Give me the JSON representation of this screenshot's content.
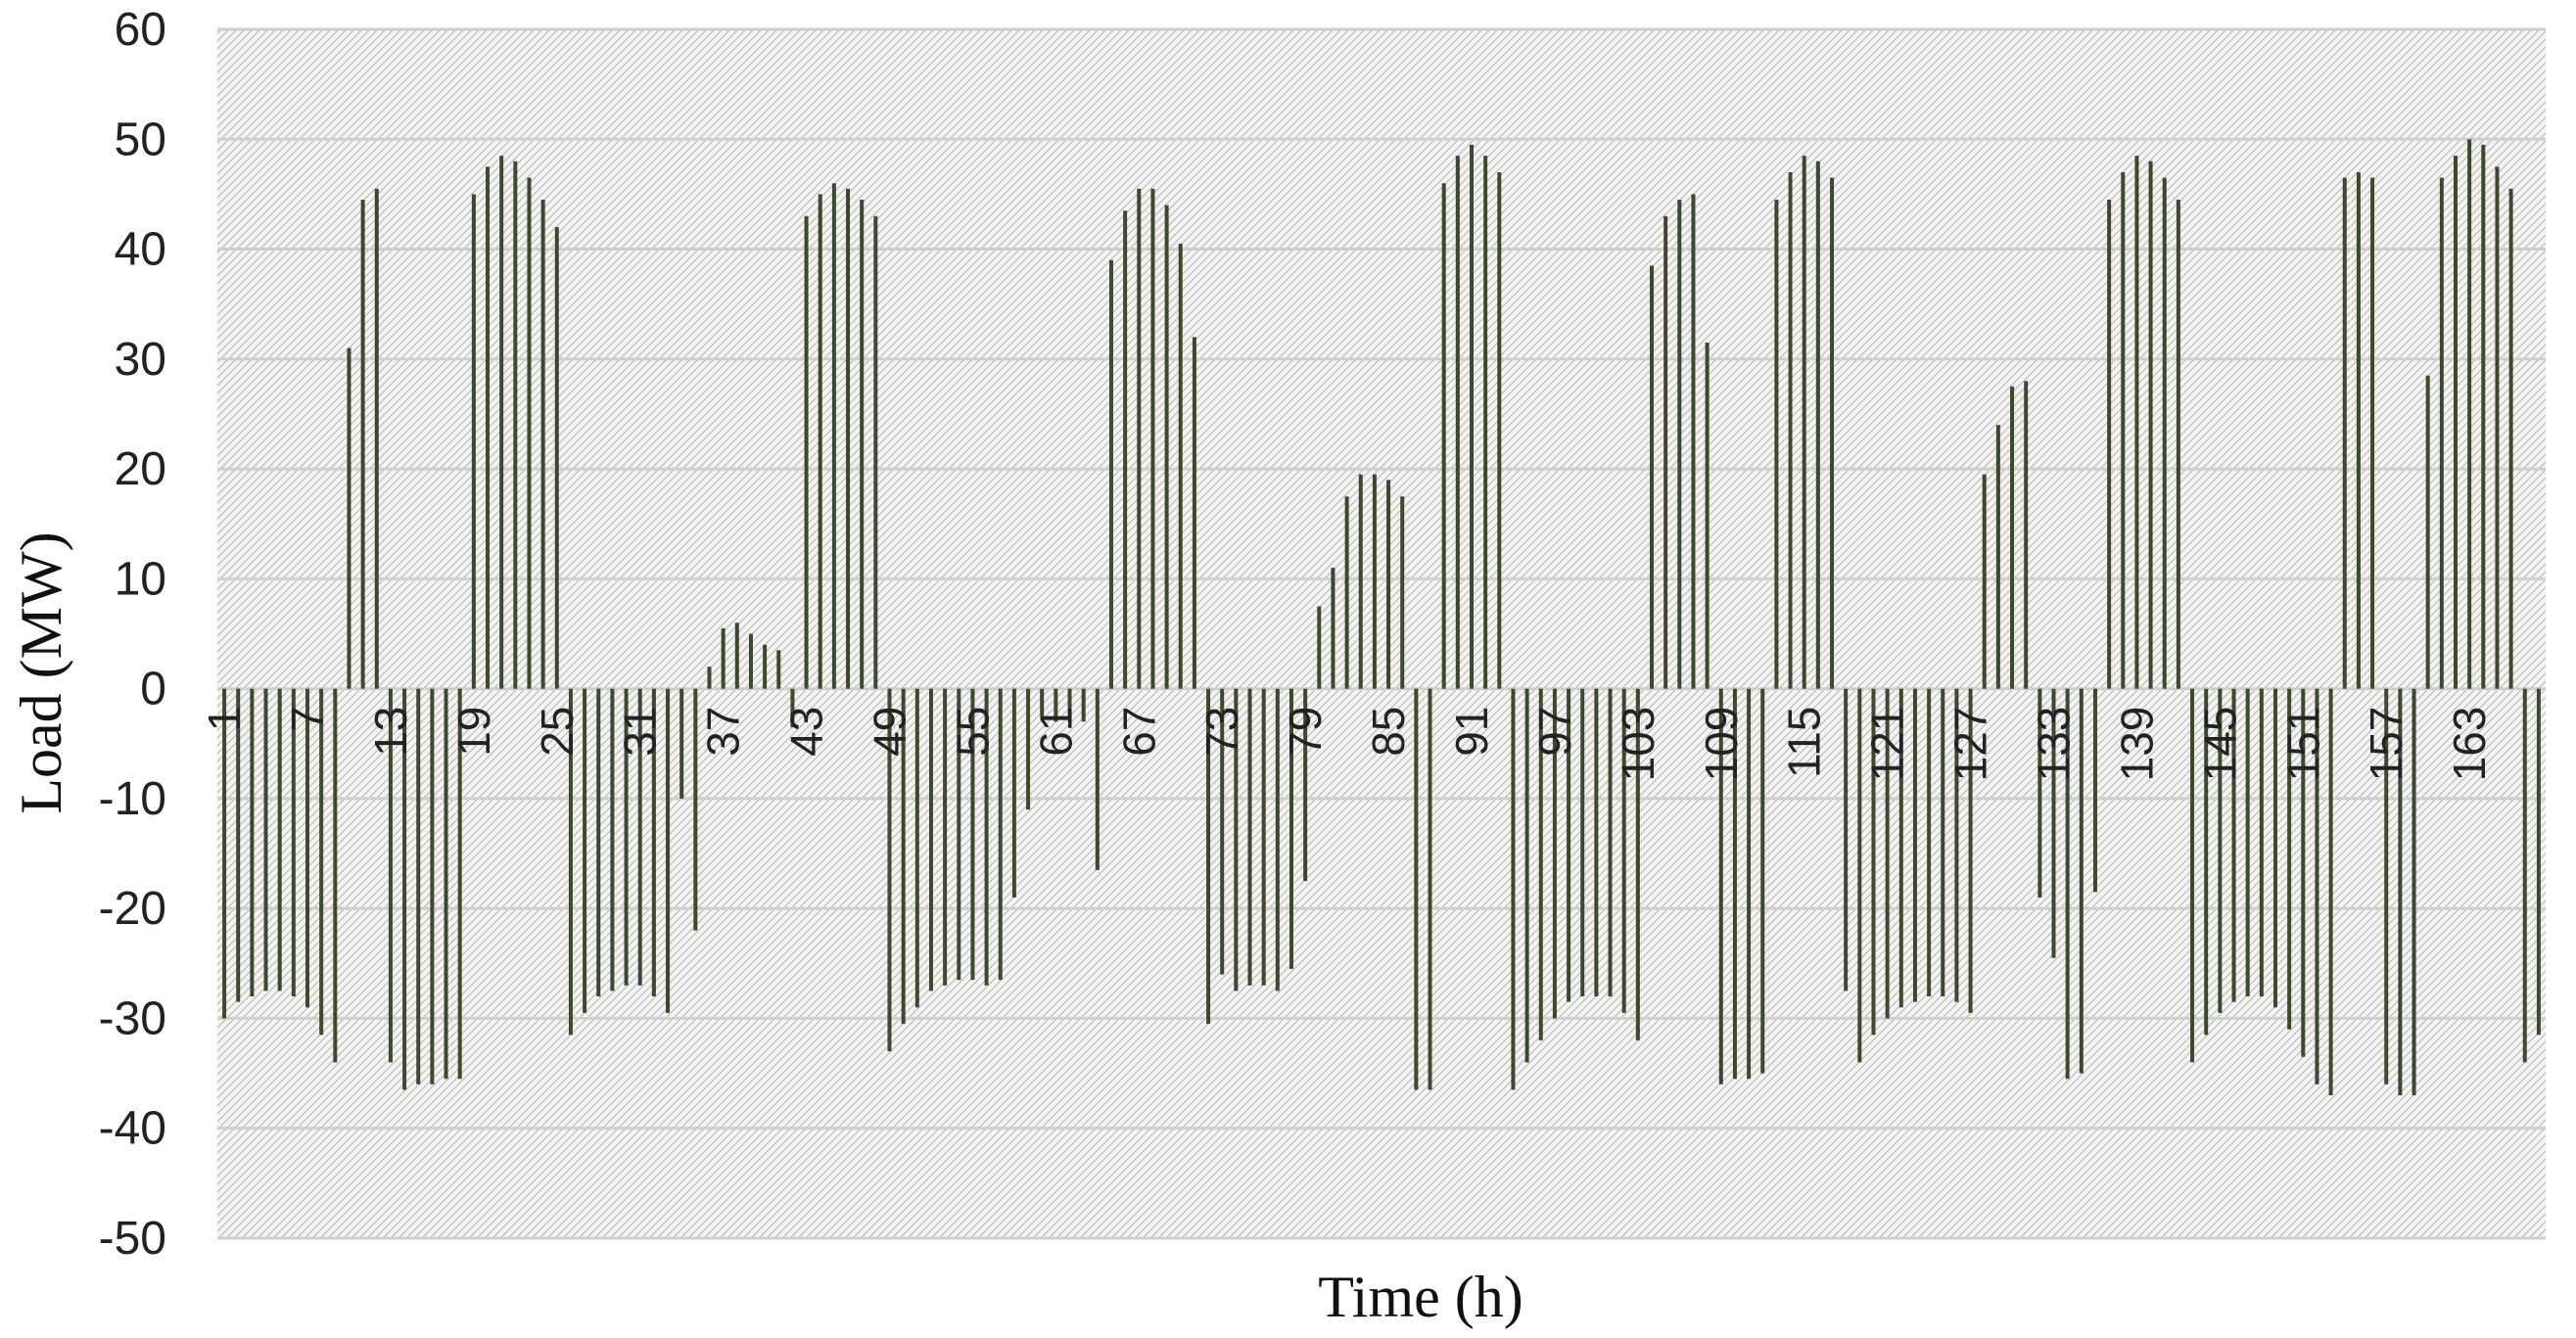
{
  "chart_data": {
    "type": "bar",
    "xlabel": "Time (h)",
    "ylabel": "Load (MW)",
    "ylim": [
      -50,
      60
    ],
    "yticks": [
      60,
      50,
      40,
      30,
      20,
      10,
      0,
      -10,
      -20,
      -30,
      -40,
      -50
    ],
    "x_tick_labels": [
      "1",
      "7",
      "13",
      "19",
      "25",
      "31",
      "37",
      "43",
      "49",
      "55",
      "61",
      "67",
      "73",
      "79",
      "85",
      "91",
      "97",
      "103",
      "109",
      "115",
      "121",
      "127",
      "133",
      "139",
      "145",
      "151",
      "157",
      "163"
    ],
    "grid": "on",
    "legend": "none",
    "bar_color": "#3c4a2c",
    "plot_background": "#e6e6e6",
    "gridline_color": "#cfcfcf",
    "series": [
      {
        "x": [
          1,
          2,
          3,
          4,
          5,
          6,
          7,
          8,
          9,
          10,
          11,
          12,
          13,
          14,
          15,
          16,
          17,
          18,
          19,
          20,
          21,
          22,
          23,
          24,
          25,
          26,
          27,
          28,
          29,
          30,
          31,
          32,
          33,
          34,
          35,
          36,
          37,
          38,
          39,
          40,
          41,
          42,
          43,
          44,
          45,
          46,
          47,
          48,
          49,
          50,
          51,
          52,
          53,
          54,
          55,
          56,
          57,
          58,
          59,
          60,
          61,
          62,
          63,
          64,
          65,
          66,
          67,
          68,
          69,
          70,
          71,
          72,
          73,
          74,
          75,
          76,
          77,
          78,
          79,
          80,
          81,
          82,
          83,
          84,
          85,
          86,
          87,
          88,
          89,
          90,
          91,
          92,
          93,
          94,
          95,
          96,
          97,
          98,
          99,
          100,
          101,
          102,
          103,
          104,
          105,
          106,
          107,
          108,
          109,
          110,
          111,
          112,
          113,
          114,
          115,
          116,
          117,
          118,
          119,
          120,
          121,
          122,
          123,
          124,
          125,
          126,
          127,
          128,
          129,
          130,
          131,
          132,
          133,
          134,
          135,
          136,
          137,
          138,
          139,
          140,
          141,
          142,
          143,
          144,
          145,
          146,
          147,
          148,
          149,
          150,
          151,
          152,
          153,
          154,
          155,
          156,
          157,
          158,
          159,
          160,
          161,
          162,
          163,
          164,
          165,
          166,
          167,
          168
        ],
        "values": [
          -30,
          -28.5,
          -28,
          -27.5,
          -27.5,
          -28,
          -29,
          -31.5,
          -34,
          31,
          44.5,
          45.5,
          -34,
          -36.5,
          -36,
          -36,
          -35.5,
          -35.5,
          45,
          47.5,
          48.5,
          48,
          46.5,
          44.5,
          42,
          -31.5,
          -29.5,
          -28,
          -27.5,
          -27,
          -27,
          -28,
          -29.5,
          -10,
          -22,
          2,
          5.5,
          6,
          5,
          4,
          3.5,
          -3.5,
          43,
          45,
          46,
          45.5,
          44.5,
          43,
          -33,
          -30.5,
          -29,
          -27.5,
          -27,
          -26.5,
          -26.5,
          -27,
          -26.5,
          -19,
          -11,
          -2.5,
          -3,
          -3,
          -3,
          -16.5,
          39,
          43.5,
          45.5,
          45.5,
          44,
          40.5,
          32,
          -30.5,
          -26,
          -27.5,
          -27,
          -27,
          -27.5,
          -25.5,
          -17.5,
          7.5,
          11,
          17.5,
          19.5,
          19.5,
          19,
          17.5,
          -36.5,
          -36.5,
          46,
          48.5,
          49.5,
          48.5,
          47,
          -36.5,
          -34,
          -32,
          -30,
          -28.5,
          -28,
          -28,
          -28,
          -29.5,
          -32,
          38.5,
          43,
          44.5,
          45,
          31.5,
          -36,
          -35.5,
          -35.5,
          -35,
          44.5,
          47,
          48.5,
          48,
          46.5,
          -27.5,
          -34,
          -31.5,
          -30,
          -29,
          -28.5,
          -28,
          -28,
          -28.5,
          -29.5,
          19.5,
          24,
          27.5,
          28,
          -19,
          -24.5,
          -35.5,
          -35,
          -18.5,
          44.5,
          47,
          48.5,
          48,
          46.5,
          44.5,
          -34,
          -31.5,
          -29.5,
          -28.5,
          -28,
          -28,
          -29,
          -31,
          -33.5,
          -36,
          -37,
          46.5,
          47,
          46.5,
          -36,
          -37,
          -37,
          28.5,
          46.5,
          48.5,
          50,
          49.5,
          47.5,
          45.5,
          -34,
          -31.5
        ]
      }
    ]
  }
}
